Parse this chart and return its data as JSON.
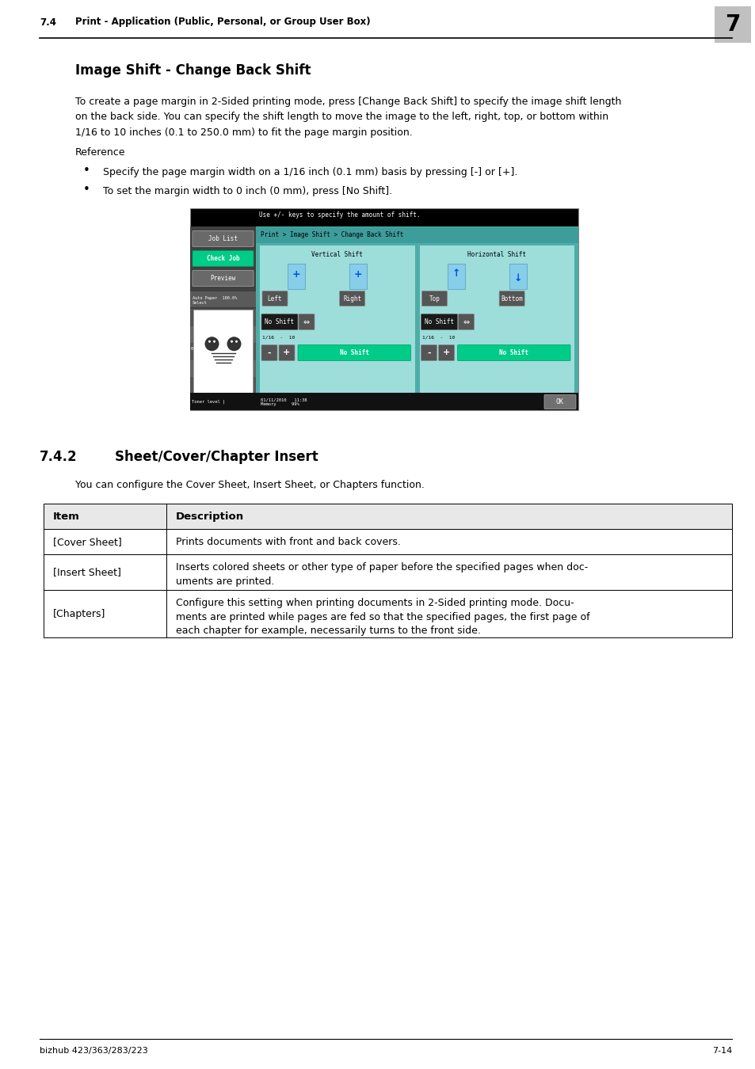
{
  "page_width": 9.54,
  "page_height": 13.5,
  "bg_color": "#ffffff",
  "header_section_number": "7.4",
  "header_title": "Print - Application (Public, Personal, or Group User Box)",
  "header_page_num": "7",
  "header_page_bg": "#c0c0c0",
  "footer_left": "bizhub 423/363/283/223",
  "footer_right": "7-14",
  "section_title": "Image Shift - Change Back Shift",
  "body_line1": "To create a page margin in 2-Sided printing mode, press [Change Back Shift] to specify the image shift length",
  "body_line2": "on the back side. You can specify the shift length to move the image to the left, right, top, or bottom within",
  "body_line3": "1/16 to 10 inches (0.1 to 250.0 mm) to fit the page margin position.",
  "reference_label": "Reference",
  "bullet1": "Specify the page margin width on a 1/16 inch (0.1 mm) basis by pressing [-] or [+].",
  "bullet2": "To set the margin width to 0 inch (0 mm), press [No Shift].",
  "section2_number": "7.4.2",
  "section2_title": "Sheet/Cover/Chapter Insert",
  "section2_body": "You can configure the Cover Sheet, Insert Sheet, or Chapters function.",
  "table_headers": [
    "Item",
    "Description"
  ],
  "table_rows": [
    [
      "[Cover Sheet]",
      "Prints documents with front and back covers."
    ],
    [
      "[Insert Sheet]",
      "Inserts colored sheets or other type of paper before the specified pages when doc-\numents are printed."
    ],
    [
      "[Chapters]",
      "Configure this setting when printing documents in 2-Sided printing mode. Docu-\nments are printed while pages are fed so that the specified pages, the first page of\neach chapter for example, necessarily turns to the front side."
    ]
  ],
  "table_header_bg": "#e8e8e8",
  "table_border_color": "#000000",
  "screen_bg": "#000000",
  "screen_teal": "#4DADA8",
  "screen_teal_light": "#6BC5C2",
  "screen_teal_lighter": "#9DDDDA",
  "screen_green_btn": "#00CC88",
  "screen_gray_btn": "#707070",
  "screen_dark_btn": "#303030",
  "screen_left_panel_bg": "#555555",
  "screen_left_panel_dark": "#333333"
}
